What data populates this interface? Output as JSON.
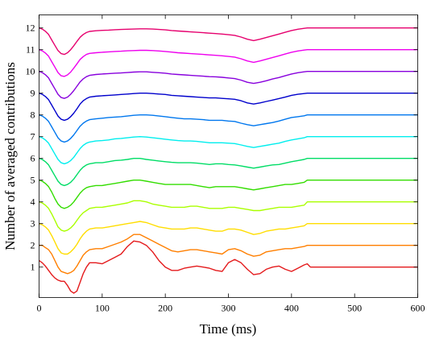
{
  "chart_data": {
    "type": "line",
    "title": "",
    "xlabel": "Time (ms)",
    "ylabel": "Number of averaged contributions",
    "xlim": [
      0,
      600
    ],
    "ylim": [
      -0.4,
      12.6
    ],
    "xticks": [
      0,
      100,
      200,
      300,
      400,
      500,
      600
    ],
    "yticks": [
      1,
      2,
      3,
      4,
      5,
      6,
      7,
      8,
      9,
      10,
      11,
      12
    ],
    "grid": false,
    "legend": "none",
    "trace_x_ms": [
      0,
      5,
      10,
      15,
      20,
      25,
      30,
      35,
      40,
      45,
      50,
      55,
      60,
      65,
      70,
      75,
      80,
      90,
      100,
      110,
      120,
      130,
      140,
      150,
      160,
      170,
      180,
      190,
      200,
      210,
      220,
      230,
      240,
      250,
      260,
      270,
      280,
      290,
      300,
      310,
      320,
      330,
      340,
      350,
      360,
      370,
      380,
      390,
      400,
      410,
      420,
      425,
      430,
      440,
      450,
      500,
      550,
      600
    ],
    "series": [
      {
        "level": 1,
        "color": "#e41a1c",
        "values": [
          1.3,
          1.2,
          1.05,
          0.85,
          0.65,
          0.5,
          0.4,
          0.35,
          0.35,
          0.15,
          -0.1,
          -0.2,
          -0.1,
          0.3,
          0.7,
          1.0,
          1.2,
          1.2,
          1.15,
          1.3,
          1.45,
          1.6,
          1.95,
          2.2,
          2.15,
          2.0,
          1.7,
          1.3,
          1.0,
          0.85,
          0.85,
          0.95,
          1.0,
          1.05,
          1.0,
          0.95,
          0.85,
          0.8,
          1.2,
          1.35,
          1.2,
          0.9,
          0.65,
          0.7,
          0.9,
          1.0,
          1.05,
          0.9,
          0.8,
          0.95,
          1.1,
          1.15,
          1.0,
          1.0,
          1.0,
          1.0,
          1.0,
          1.0
        ]
      },
      {
        "level": 2,
        "color": "#ff7f00",
        "values": [
          2.0,
          2.0,
          1.9,
          1.8,
          1.6,
          1.3,
          1.0,
          0.8,
          0.75,
          0.7,
          0.75,
          0.85,
          1.05,
          1.3,
          1.55,
          1.7,
          1.8,
          1.85,
          1.85,
          1.95,
          2.05,
          2.15,
          2.3,
          2.5,
          2.5,
          2.35,
          2.2,
          2.05,
          1.9,
          1.75,
          1.7,
          1.75,
          1.8,
          1.8,
          1.75,
          1.7,
          1.65,
          1.6,
          1.8,
          1.85,
          1.75,
          1.6,
          1.5,
          1.55,
          1.7,
          1.75,
          1.8,
          1.85,
          1.85,
          1.9,
          1.95,
          2.0,
          2.0,
          2.0,
          2.0,
          2.0,
          2.0,
          2.0
        ]
      },
      {
        "level": 3,
        "color": "#ffdd00",
        "values": [
          3.0,
          2.95,
          2.85,
          2.7,
          2.45,
          2.15,
          1.85,
          1.65,
          1.6,
          1.6,
          1.7,
          1.85,
          2.05,
          2.3,
          2.5,
          2.65,
          2.75,
          2.8,
          2.8,
          2.85,
          2.9,
          2.95,
          3.0,
          3.05,
          3.1,
          3.05,
          2.95,
          2.85,
          2.8,
          2.75,
          2.75,
          2.75,
          2.8,
          2.8,
          2.75,
          2.7,
          2.65,
          2.65,
          2.75,
          2.75,
          2.7,
          2.6,
          2.5,
          2.55,
          2.65,
          2.7,
          2.75,
          2.75,
          2.8,
          2.85,
          2.9,
          3.0,
          3.0,
          3.0,
          3.0,
          3.0,
          3.0,
          3.0
        ]
      },
      {
        "level": 4,
        "color": "#aaff00",
        "values": [
          4.0,
          3.95,
          3.85,
          3.7,
          3.45,
          3.15,
          2.85,
          2.7,
          2.65,
          2.7,
          2.8,
          2.95,
          3.15,
          3.35,
          3.5,
          3.6,
          3.7,
          3.75,
          3.75,
          3.8,
          3.85,
          3.9,
          3.95,
          4.05,
          4.05,
          4.0,
          3.9,
          3.85,
          3.8,
          3.75,
          3.75,
          3.75,
          3.8,
          3.8,
          3.75,
          3.7,
          3.7,
          3.7,
          3.75,
          3.75,
          3.7,
          3.65,
          3.6,
          3.6,
          3.65,
          3.7,
          3.75,
          3.75,
          3.75,
          3.8,
          3.85,
          4.0,
          4.0,
          4.0,
          4.0,
          4.0,
          4.0,
          4.0
        ]
      },
      {
        "level": 5,
        "color": "#33dd00",
        "values": [
          5.0,
          4.95,
          4.85,
          4.7,
          4.45,
          4.15,
          3.9,
          3.75,
          3.7,
          3.75,
          3.85,
          4.0,
          4.2,
          4.4,
          4.55,
          4.65,
          4.7,
          4.75,
          4.75,
          4.8,
          4.85,
          4.9,
          4.95,
          5.0,
          5.0,
          4.95,
          4.9,
          4.85,
          4.8,
          4.8,
          4.8,
          4.8,
          4.8,
          4.75,
          4.7,
          4.65,
          4.7,
          4.7,
          4.7,
          4.7,
          4.65,
          4.6,
          4.55,
          4.6,
          4.65,
          4.7,
          4.75,
          4.8,
          4.8,
          4.85,
          4.9,
          5.0,
          5.0,
          5.0,
          5.0,
          5.0,
          5.0,
          5.0
        ]
      },
      {
        "level": 6,
        "color": "#00dd66",
        "values": [
          6.0,
          5.95,
          5.85,
          5.7,
          5.45,
          5.2,
          4.95,
          4.8,
          4.75,
          4.8,
          4.9,
          5.05,
          5.25,
          5.45,
          5.6,
          5.7,
          5.75,
          5.8,
          5.8,
          5.85,
          5.9,
          5.92,
          5.95,
          6.0,
          6.0,
          5.95,
          5.92,
          5.88,
          5.85,
          5.82,
          5.8,
          5.8,
          5.8,
          5.78,
          5.75,
          5.72,
          5.75,
          5.75,
          5.72,
          5.7,
          5.65,
          5.6,
          5.55,
          5.6,
          5.65,
          5.7,
          5.72,
          5.78,
          5.85,
          5.9,
          5.95,
          6.0,
          6.0,
          6.0,
          6.0,
          6.0,
          6.0,
          6.0
        ]
      },
      {
        "level": 7,
        "color": "#00eeee",
        "values": [
          7.0,
          6.95,
          6.85,
          6.7,
          6.45,
          6.2,
          5.95,
          5.8,
          5.75,
          5.8,
          5.9,
          6.05,
          6.25,
          6.45,
          6.6,
          6.7,
          6.75,
          6.8,
          6.82,
          6.85,
          6.9,
          6.92,
          6.95,
          6.98,
          7.0,
          6.98,
          6.95,
          6.92,
          6.88,
          6.85,
          6.82,
          6.8,
          6.8,
          6.78,
          6.75,
          6.72,
          6.72,
          6.72,
          6.7,
          6.68,
          6.62,
          6.55,
          6.5,
          6.55,
          6.6,
          6.65,
          6.7,
          6.78,
          6.85,
          6.9,
          6.95,
          7.0,
          7.0,
          7.0,
          7.0,
          7.0,
          7.0,
          7.0
        ]
      },
      {
        "level": 8,
        "color": "#0077ee",
        "values": [
          8.0,
          7.95,
          7.85,
          7.7,
          7.45,
          7.2,
          6.95,
          6.8,
          6.75,
          6.8,
          6.92,
          7.08,
          7.28,
          7.48,
          7.62,
          7.72,
          7.78,
          7.82,
          7.85,
          7.88,
          7.9,
          7.92,
          7.95,
          7.98,
          8.0,
          8.0,
          7.98,
          7.95,
          7.92,
          7.88,
          7.85,
          7.82,
          7.82,
          7.8,
          7.78,
          7.75,
          7.75,
          7.75,
          7.72,
          7.7,
          7.62,
          7.55,
          7.5,
          7.55,
          7.6,
          7.65,
          7.72,
          7.8,
          7.88,
          7.92,
          7.96,
          8.0,
          8.0,
          8.0,
          8.0,
          8.0,
          8.0,
          8.0
        ]
      },
      {
        "level": 9,
        "color": "#0000cc",
        "values": [
          9.0,
          8.95,
          8.85,
          8.7,
          8.45,
          8.2,
          7.95,
          7.8,
          7.75,
          7.8,
          7.92,
          8.08,
          8.28,
          8.5,
          8.65,
          8.75,
          8.82,
          8.86,
          8.88,
          8.9,
          8.92,
          8.94,
          8.96,
          8.98,
          9.0,
          9.0,
          8.98,
          8.96,
          8.94,
          8.9,
          8.88,
          8.86,
          8.84,
          8.82,
          8.8,
          8.78,
          8.78,
          8.76,
          8.74,
          8.72,
          8.65,
          8.55,
          8.5,
          8.55,
          8.62,
          8.68,
          8.75,
          8.82,
          8.9,
          8.95,
          8.98,
          9.0,
          9.0,
          9.0,
          9.0,
          9.0,
          9.0,
          9.0
        ]
      },
      {
        "level": 10,
        "color": "#8800dd",
        "values": [
          10.0,
          9.95,
          9.85,
          9.7,
          9.45,
          9.2,
          8.95,
          8.8,
          8.76,
          8.82,
          8.95,
          9.12,
          9.32,
          9.52,
          9.66,
          9.76,
          9.82,
          9.86,
          9.88,
          9.9,
          9.92,
          9.93,
          9.95,
          9.97,
          9.98,
          9.98,
          9.96,
          9.94,
          9.92,
          9.88,
          9.86,
          9.84,
          9.82,
          9.8,
          9.78,
          9.76,
          9.75,
          9.73,
          9.7,
          9.67,
          9.6,
          9.5,
          9.45,
          9.5,
          9.57,
          9.65,
          9.72,
          9.8,
          9.88,
          9.94,
          9.98,
          10.0,
          10.0,
          10.0,
          10.0,
          10.0,
          10.0,
          10.0
        ]
      },
      {
        "level": 11,
        "color": "#ee00ee",
        "values": [
          11.0,
          10.95,
          10.85,
          10.7,
          10.45,
          10.2,
          9.95,
          9.8,
          9.77,
          9.84,
          9.97,
          10.15,
          10.35,
          10.55,
          10.68,
          10.78,
          10.83,
          10.86,
          10.88,
          10.9,
          10.92,
          10.93,
          10.95,
          10.96,
          10.97,
          10.97,
          10.96,
          10.94,
          10.92,
          10.89,
          10.86,
          10.84,
          10.82,
          10.8,
          10.78,
          10.76,
          10.74,
          10.72,
          10.69,
          10.66,
          10.58,
          10.48,
          10.42,
          10.48,
          10.56,
          10.64,
          10.72,
          10.8,
          10.88,
          10.94,
          10.98,
          11.0,
          11.0,
          11.0,
          11.0,
          11.0,
          11.0,
          11.0
        ]
      },
      {
        "level": 12,
        "color": "#e6006e",
        "values": [
          12.0,
          11.95,
          11.85,
          11.7,
          11.45,
          11.2,
          10.96,
          10.82,
          10.78,
          10.86,
          11.0,
          11.18,
          11.38,
          11.57,
          11.7,
          11.79,
          11.84,
          11.87,
          11.89,
          11.9,
          11.92,
          11.93,
          11.94,
          11.95,
          11.96,
          11.96,
          11.95,
          11.93,
          11.91,
          11.88,
          11.86,
          11.84,
          11.82,
          11.8,
          11.78,
          11.76,
          11.74,
          11.72,
          11.69,
          11.66,
          11.58,
          11.48,
          11.42,
          11.48,
          11.56,
          11.64,
          11.72,
          11.8,
          11.88,
          11.94,
          11.98,
          12.0,
          12.0,
          12.0,
          12.0,
          12.0,
          12.0,
          12.0
        ]
      }
    ]
  }
}
